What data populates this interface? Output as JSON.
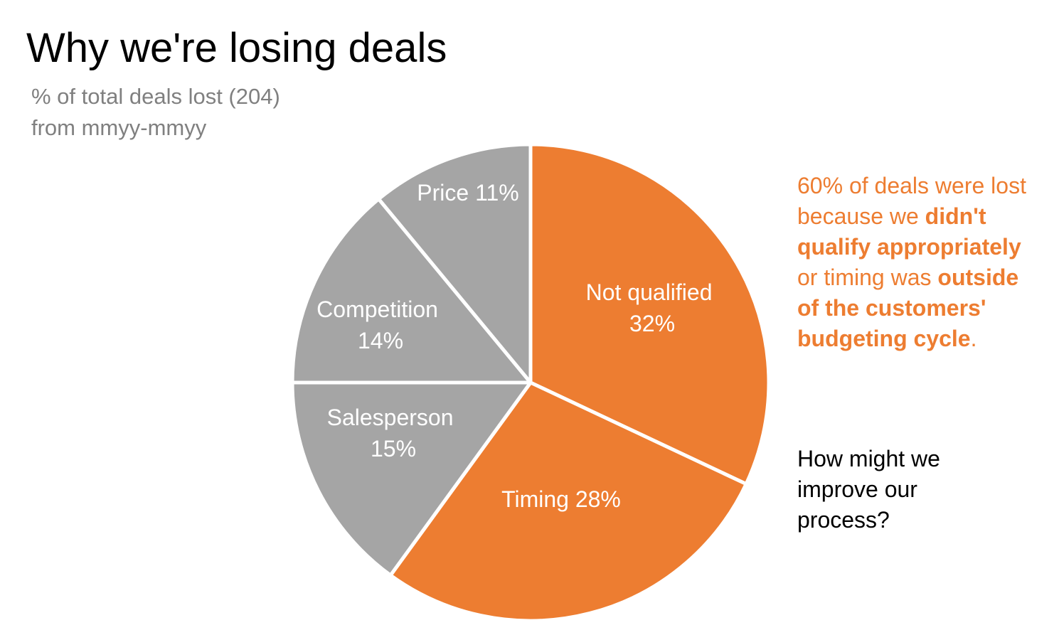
{
  "header": {
    "title": "Why we're losing deals",
    "subtitle_line1": "% of total deals lost (204)",
    "subtitle_line2": "from mmyy-mmyy"
  },
  "callout": {
    "parts": [
      {
        "text": "60% of deals were lost because we ",
        "bold": false
      },
      {
        "text": "didn't qualify appropriately",
        "bold": true
      },
      {
        "text": " or timing was ",
        "bold": false
      },
      {
        "text": "outside of the customers' budgeting cycle",
        "bold": true
      },
      {
        "text": ".",
        "bold": false
      }
    ],
    "color": "#ED7D31"
  },
  "question": "How might we improve our process?",
  "colors": {
    "highlight": "#ED7D31",
    "muted": "#A5A5A5",
    "separator": "#FFFFFF"
  },
  "chart_data": {
    "type": "pie",
    "title": "Why we're losing deals",
    "subtitle": "% of total deals lost (204) from mmyy-mmyy",
    "start_angle": "12 o'clock, clockwise",
    "categories": [
      "Not qualified",
      "Timing",
      "Salesperson",
      "Competition",
      "Price"
    ],
    "values": [
      32,
      28,
      15,
      14,
      11
    ],
    "unit": "%",
    "total_deals_lost": 204,
    "slice_colors": [
      "#ED7D31",
      "#ED7D31",
      "#A5A5A5",
      "#A5A5A5",
      "#A5A5A5"
    ],
    "data_labels": [
      "Not qualified 32%",
      "Timing 28%",
      "Salesperson 15%",
      "Competition 14%",
      "Price 11%"
    ],
    "legend": "none (labels inside slices)"
  }
}
